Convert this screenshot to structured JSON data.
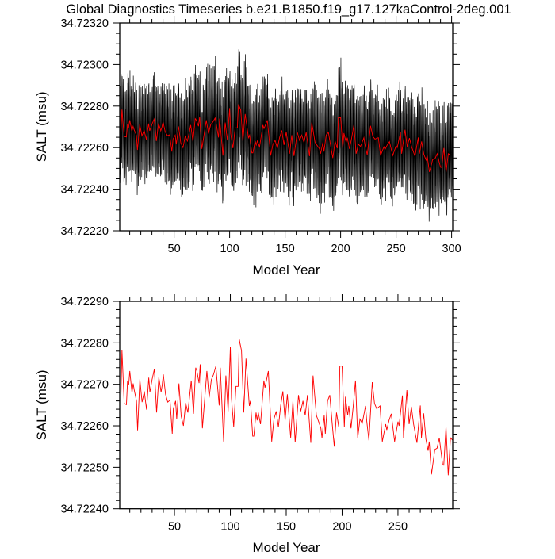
{
  "chart_data": [
    {
      "type": "line",
      "title": "Global Diagnostics Timeseries b.e21.B1850.f19_g17.127kaControl-2deg.001",
      "xlabel": "Model Year",
      "ylabel": "SALT (msu)",
      "xlim": [
        1,
        301
      ],
      "ylim": [
        34.7222,
        34.7232
      ],
      "grid": false,
      "xticks": [
        "50",
        "100",
        "150",
        "200",
        "250",
        "300"
      ],
      "yticks": [
        "34.72220",
        "34.72240",
        "34.72260",
        "34.72280",
        "34.72300",
        "34.72320"
      ],
      "series": [
        {
          "kind": "monthly",
          "color": "#000000",
          "envelope_years": [
            1,
            25,
            50,
            75,
            100,
            125,
            150,
            175,
            200,
            225,
            250,
            275,
            301
          ],
          "upper": [
            34.723,
            34.72298,
            34.72298,
            34.723,
            34.72304,
            34.72298,
            34.72296,
            34.72296,
            34.72302,
            34.72296,
            34.72294,
            34.72294,
            34.7229
          ],
          "lower": [
            34.72248,
            34.72246,
            34.72246,
            34.72245,
            34.72244,
            34.72242,
            34.72243,
            34.72242,
            34.72242,
            34.72242,
            34.72242,
            34.72236,
            34.72238
          ]
        },
        {
          "kind": "annual",
          "color": "#ff0000",
          "same_as_chart": 1
        }
      ]
    },
    {
      "type": "line",
      "xlabel": "Model Year",
      "ylabel": "SALT (msu)",
      "xlim": [
        1,
        299
      ],
      "ylim": [
        34.7224,
        34.7229
      ],
      "grid": false,
      "xticks": [
        "50",
        "100",
        "150",
        "200",
        "250"
      ],
      "yticks": [
        "34.72240",
        "34.72250",
        "34.72260",
        "34.72270",
        "34.72280",
        "34.72290"
      ],
      "series": [
        {
          "kind": "annual",
          "color": "#ff0000",
          "x": [
            2,
            3,
            5,
            7,
            8,
            9,
            10,
            12,
            13,
            14,
            16,
            17,
            19,
            21,
            23,
            25,
            27,
            28,
            30,
            32,
            34,
            36,
            38,
            39,
            40,
            42,
            44,
            46,
            48,
            49,
            51,
            52,
            54,
            56,
            58,
            60,
            62,
            65,
            67,
            69,
            70,
            72,
            73,
            75,
            79,
            81,
            83,
            85,
            87,
            90,
            91,
            94,
            96,
            98,
            100,
            101,
            103,
            105,
            107,
            108,
            110,
            112,
            114,
            117,
            118,
            120,
            121,
            123,
            124,
            125,
            127,
            130,
            131,
            134,
            137,
            139,
            141,
            143,
            145,
            147,
            149,
            151,
            154,
            156,
            158,
            161,
            163,
            165,
            167,
            169,
            172,
            174,
            177,
            179,
            181,
            182,
            184,
            185,
            187,
            189,
            191,
            193,
            195,
            197,
            198,
            200,
            202,
            203,
            205,
            206,
            208,
            210,
            212,
            214,
            216,
            218,
            221,
            222,
            224,
            227,
            229,
            231,
            234,
            236,
            239,
            240,
            242,
            244,
            247,
            250,
            251,
            254,
            255,
            258,
            260,
            262,
            264,
            267,
            270,
            271,
            273,
            275,
            277,
            278,
            280,
            283,
            285,
            287,
            290,
            291,
            293,
            295,
            297,
            299
          ],
          "y": [
            34.72266,
            34.722783,
            34.722654,
            34.722651,
            34.722709,
            34.722698,
            34.722732,
            34.722679,
            34.722702,
            34.722686,
            34.72266,
            34.722589,
            34.722712,
            34.722657,
            34.722683,
            34.722639,
            34.722716,
            34.722681,
            34.722712,
            34.722737,
            34.722632,
            34.722717,
            34.722681,
            34.722698,
            34.722724,
            34.722676,
            34.722657,
            34.722662,
            34.722581,
            34.722641,
            34.72266,
            34.722616,
            34.722702,
            34.722623,
            34.7226,
            34.722655,
            34.722632,
            34.722709,
            34.722629,
            34.72274,
            34.722733,
            34.722703,
            34.722748,
            34.722594,
            34.722732,
            34.722668,
            34.722711,
            34.722724,
            34.722743,
            34.722649,
            34.72274,
            34.722562,
            34.722721,
            34.722635,
            34.72279,
            34.722667,
            34.722597,
            34.722695,
            34.722695,
            34.722808,
            34.722781,
            34.722632,
            34.722762,
            34.722648,
            34.72266,
            34.722575,
            34.722575,
            34.722632,
            34.722613,
            34.722632,
            34.722604,
            34.722709,
            34.722692,
            34.722732,
            34.722562,
            34.722616,
            34.722635,
            34.722597,
            34.722648,
            34.722683,
            34.722613,
            34.722676,
            34.722571,
            34.72266,
            34.72256,
            34.722674,
            34.722635,
            34.72266,
            34.722625,
            34.722674,
            34.722559,
            34.722721,
            34.722625,
            34.72261,
            34.722594,
            34.722571,
            34.722625,
            34.722581,
            34.72266,
            34.722674,
            34.72261,
            34.72255,
            34.722632,
            34.722597,
            34.722744,
            34.722744,
            34.722597,
            34.72267,
            34.722625,
            34.722648,
            34.722594,
            34.722648,
            34.722709,
            34.722571,
            34.722616,
            34.722606,
            34.722648,
            34.722613,
            34.722565,
            34.722705,
            34.722654,
            34.722641,
            34.722648,
            34.722562,
            34.722604,
            34.72259,
            34.722613,
            34.722629,
            34.722562,
            34.72261,
            34.7226,
            34.722673,
            34.722571,
            34.722686,
            34.722604,
            34.722646,
            34.722604,
            34.722559,
            34.722649,
            34.722571,
            34.72263,
            34.722568,
            34.72254,
            34.722562,
            34.722483,
            34.722543,
            34.722546,
            34.722571,
            34.722506,
            34.722505,
            34.722598,
            34.722481,
            34.722571,
            34.722565
          ]
        }
      ]
    }
  ]
}
